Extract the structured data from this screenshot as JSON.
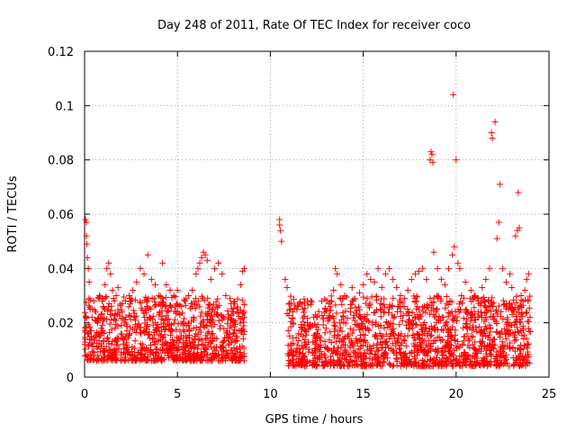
{
  "chart_data": {
    "type": "scatter",
    "title": "Day 248 of 2011, Rate Of TEC Index for receiver coco",
    "xlabel": "GPS time / hours",
    "ylabel": "ROTI / TECUs",
    "xlim": [
      0,
      25
    ],
    "ylim": [
      0,
      0.12
    ],
    "xticks": [
      0,
      5,
      10,
      15,
      20,
      25
    ],
    "xtick_labels": [
      "0",
      "5",
      "10",
      "15",
      "20",
      "25"
    ],
    "yticks": [
      0,
      0.02,
      0.04,
      0.06,
      0.08,
      0.1,
      0.12
    ],
    "ytick_labels": [
      "0",
      "0.02",
      "0.04",
      "0.06",
      "0.08",
      "0.1",
      "0.12"
    ],
    "grid": true,
    "marker": "+",
    "color": "#ff0000",
    "series": [
      {
        "name": "ROTI",
        "points": [
          [
            0.0,
            0.012
          ],
          [
            0.05,
            0.058
          ],
          [
            0.1,
            0.057
          ],
          [
            0.1,
            0.052
          ],
          [
            0.12,
            0.049
          ],
          [
            0.15,
            0.044
          ],
          [
            0.2,
            0.04
          ],
          [
            0.25,
            0.035
          ],
          [
            0.3,
            0.025
          ],
          [
            0.4,
            0.022
          ],
          [
            0.5,
            0.028
          ],
          [
            0.6,
            0.024
          ],
          [
            0.7,
            0.02
          ],
          [
            0.8,
            0.03
          ],
          [
            0.9,
            0.018
          ],
          [
            1.0,
            0.026
          ],
          [
            1.1,
            0.034
          ],
          [
            1.2,
            0.04
          ],
          [
            1.3,
            0.042
          ],
          [
            1.4,
            0.038
          ],
          [
            1.5,
            0.032
          ],
          [
            1.6,
            0.028
          ],
          [
            1.7,
            0.03
          ],
          [
            1.8,
            0.033
          ],
          [
            2.0,
            0.024
          ],
          [
            2.2,
            0.028
          ],
          [
            2.4,
            0.03
          ],
          [
            2.6,
            0.032
          ],
          [
            2.8,
            0.035
          ],
          [
            3.0,
            0.04
          ],
          [
            3.2,
            0.038
          ],
          [
            3.4,
            0.045
          ],
          [
            3.6,
            0.036
          ],
          [
            3.8,
            0.034
          ],
          [
            4.0,
            0.03
          ],
          [
            4.2,
            0.042
          ],
          [
            4.4,
            0.034
          ],
          [
            4.6,
            0.032
          ],
          [
            4.8,
            0.03
          ],
          [
            5.0,
            0.032
          ],
          [
            5.2,
            0.026
          ],
          [
            5.4,
            0.028
          ],
          [
            5.6,
            0.03
          ],
          [
            5.8,
            0.032
          ],
          [
            6.0,
            0.038
          ],
          [
            6.1,
            0.04
          ],
          [
            6.2,
            0.042
          ],
          [
            6.3,
            0.044
          ],
          [
            6.4,
            0.046
          ],
          [
            6.5,
            0.045
          ],
          [
            6.6,
            0.043
          ],
          [
            6.8,
            0.036
          ],
          [
            7.0,
            0.04
          ],
          [
            7.2,
            0.042
          ],
          [
            7.4,
            0.038
          ],
          [
            7.6,
            0.03
          ],
          [
            7.8,
            0.022
          ],
          [
            8.0,
            0.02
          ],
          [
            8.2,
            0.024
          ],
          [
            8.4,
            0.034
          ],
          [
            8.5,
            0.039
          ],
          [
            8.6,
            0.04
          ],
          [
            10.5,
            0.058
          ],
          [
            10.5,
            0.056
          ],
          [
            10.55,
            0.054
          ],
          [
            10.6,
            0.05
          ],
          [
            10.8,
            0.036
          ],
          [
            10.9,
            0.033
          ],
          [
            11.0,
            0.027
          ],
          [
            11.2,
            0.024
          ],
          [
            11.5,
            0.016
          ],
          [
            12.0,
            0.02
          ],
          [
            12.5,
            0.022
          ],
          [
            13.0,
            0.018
          ],
          [
            13.2,
            0.022
          ],
          [
            13.3,
            0.028
          ],
          [
            13.4,
            0.032
          ],
          [
            13.5,
            0.04
          ],
          [
            13.6,
            0.038
          ],
          [
            13.8,
            0.034
          ],
          [
            14.0,
            0.03
          ],
          [
            14.4,
            0.033
          ],
          [
            14.8,
            0.031
          ],
          [
            15.0,
            0.034
          ],
          [
            15.2,
            0.038
          ],
          [
            15.4,
            0.036
          ],
          [
            15.6,
            0.035
          ],
          [
            15.8,
            0.04
          ],
          [
            16.0,
            0.033
          ],
          [
            16.2,
            0.038
          ],
          [
            16.4,
            0.04
          ],
          [
            16.6,
            0.036
          ],
          [
            16.8,
            0.033
          ],
          [
            17.0,
            0.03
          ],
          [
            17.2,
            0.026
          ],
          [
            17.4,
            0.032
          ],
          [
            17.6,
            0.036
          ],
          [
            17.8,
            0.038
          ],
          [
            18.0,
            0.039
          ],
          [
            18.2,
            0.04
          ],
          [
            18.4,
            0.036
          ],
          [
            18.6,
            0.08
          ],
          [
            18.65,
            0.083
          ],
          [
            18.7,
            0.082
          ],
          [
            18.75,
            0.079
          ],
          [
            18.8,
            0.046
          ],
          [
            19.0,
            0.04
          ],
          [
            19.2,
            0.036
          ],
          [
            19.4,
            0.034
          ],
          [
            19.6,
            0.04
          ],
          [
            19.8,
            0.045
          ],
          [
            19.85,
            0.104
          ],
          [
            19.9,
            0.048
          ],
          [
            20.0,
            0.08
          ],
          [
            20.1,
            0.042
          ],
          [
            20.2,
            0.04
          ],
          [
            20.5,
            0.035
          ],
          [
            20.8,
            0.032
          ],
          [
            21.0,
            0.03
          ],
          [
            21.2,
            0.028
          ],
          [
            21.4,
            0.033
          ],
          [
            21.6,
            0.036
          ],
          [
            21.8,
            0.04
          ],
          [
            21.9,
            0.09
          ],
          [
            21.95,
            0.088
          ],
          [
            22.1,
            0.094
          ],
          [
            22.2,
            0.051
          ],
          [
            22.3,
            0.057
          ],
          [
            22.35,
            0.071
          ],
          [
            22.5,
            0.04
          ],
          [
            22.7,
            0.035
          ],
          [
            22.9,
            0.038
          ],
          [
            23.0,
            0.033
          ],
          [
            23.2,
            0.052
          ],
          [
            23.3,
            0.054
          ],
          [
            23.35,
            0.068
          ],
          [
            23.4,
            0.055
          ],
          [
            23.5,
            0.03
          ],
          [
            23.6,
            0.028
          ],
          [
            23.7,
            0.032
          ],
          [
            23.8,
            0.036
          ],
          [
            23.9,
            0.038
          ]
        ]
      }
    ]
  }
}
